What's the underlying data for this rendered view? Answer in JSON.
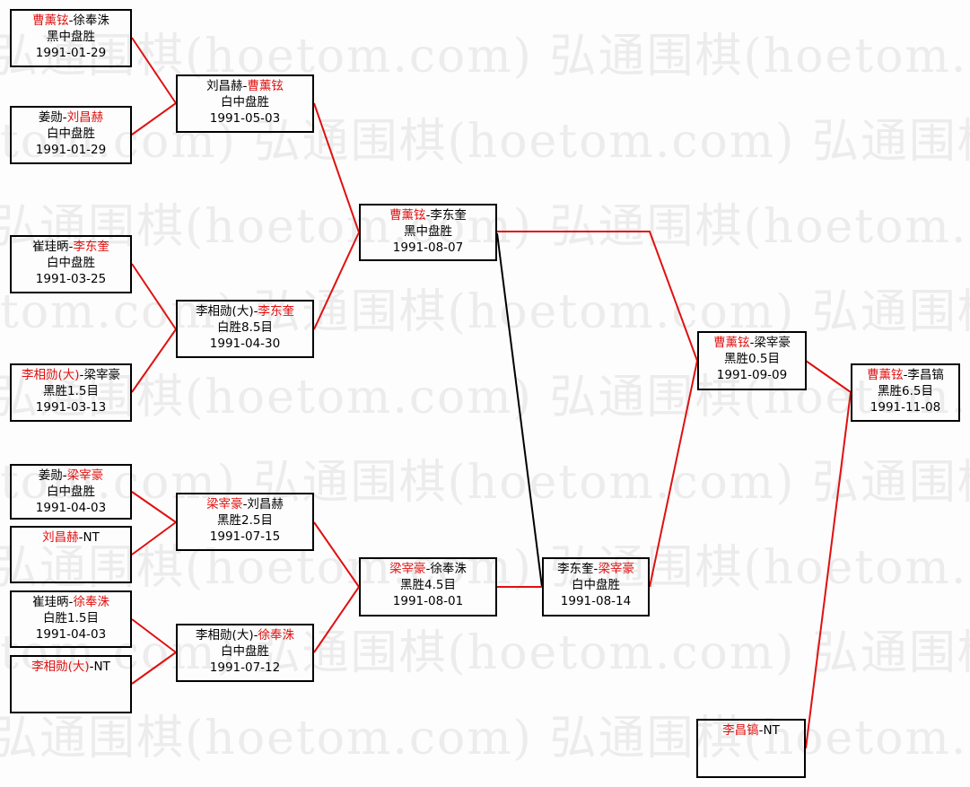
{
  "watermark": "弘通围棋(hoetom.com)",
  "colors": {
    "winner_line": "#e01010",
    "loser_line": "#000000",
    "winner_name": "#e01010"
  },
  "matches": [
    {
      "id": "r1m1",
      "line1": [
        {
          "t": "曹薰铉",
          "red": true
        },
        {
          "t": "-徐奉洙",
          "red": false
        }
      ],
      "result": "黑中盘胜",
      "date": "1991-01-29"
    },
    {
      "id": "r1m2",
      "line1": [
        {
          "t": "姜勋-",
          "red": false
        },
        {
          "t": "刘昌赫",
          "red": true
        }
      ],
      "result": "白中盘胜",
      "date": "1991-01-29"
    },
    {
      "id": "r1m3",
      "line1": [
        {
          "t": "崔珪昞-",
          "red": false
        },
        {
          "t": "李东奎",
          "red": true
        }
      ],
      "result": "白中盘胜",
      "date": "1991-03-25"
    },
    {
      "id": "r1m4",
      "line1": [
        {
          "t": "李相勋(大)",
          "red": true
        },
        {
          "t": "-梁宰豪",
          "red": false
        }
      ],
      "result": "黑胜1.5目",
      "date": "1991-03-13"
    },
    {
      "id": "r1m5",
      "line1": [
        {
          "t": "姜勋-",
          "red": false
        },
        {
          "t": "梁宰豪",
          "red": true
        }
      ],
      "result": "白中盘胜",
      "date": "1991-04-03"
    },
    {
      "id": "r1m6",
      "line1": [
        {
          "t": "刘昌赫",
          "red": true
        },
        {
          "t": "-NT",
          "red": false
        }
      ],
      "result": "",
      "date": ""
    },
    {
      "id": "r1m7",
      "line1": [
        {
          "t": "崔珪昞-",
          "red": false
        },
        {
          "t": "徐奉洙",
          "red": true
        }
      ],
      "result": "白胜1.5目",
      "date": "1991-04-03"
    },
    {
      "id": "r1m8",
      "line1": [
        {
          "t": "李相勋(大)",
          "red": true
        },
        {
          "t": "-NT",
          "red": false
        }
      ],
      "result": "",
      "date": ""
    },
    {
      "id": "r2m1",
      "line1": [
        {
          "t": "刘昌赫-",
          "red": false
        },
        {
          "t": "曹薰铉",
          "red": true
        }
      ],
      "result": "白中盘胜",
      "date": "1991-05-03"
    },
    {
      "id": "r2m2",
      "line1": [
        {
          "t": "李相勋(大)-",
          "red": false
        },
        {
          "t": "李东奎",
          "red": true
        }
      ],
      "result": "白胜8.5目",
      "date": "1991-04-30"
    },
    {
      "id": "r2m3",
      "line1": [
        {
          "t": "梁宰豪",
          "red": true
        },
        {
          "t": "-刘昌赫",
          "red": false
        }
      ],
      "result": "黑胜2.5目",
      "date": "1991-07-15"
    },
    {
      "id": "r2m4",
      "line1": [
        {
          "t": "李相勋(大)-",
          "red": false
        },
        {
          "t": "徐奉洙",
          "red": true
        }
      ],
      "result": "白中盘胜",
      "date": "1991-07-12"
    },
    {
      "id": "r3m1",
      "line1": [
        {
          "t": "曹薰铉",
          "red": true
        },
        {
          "t": "-李东奎",
          "red": false
        }
      ],
      "result": "黑中盘胜",
      "date": "1991-08-07"
    },
    {
      "id": "r3m2",
      "line1": [
        {
          "t": "梁宰豪",
          "red": true
        },
        {
          "t": "-徐奉洙",
          "red": false
        }
      ],
      "result": "黑胜4.5目",
      "date": "1991-08-01"
    },
    {
      "id": "r4m1",
      "line1": [
        {
          "t": "李东奎-",
          "red": false
        },
        {
          "t": "梁宰豪",
          "red": true
        }
      ],
      "result": "白中盘胜",
      "date": "1991-08-14"
    },
    {
      "id": "r5m1",
      "line1": [
        {
          "t": "曹薰铉",
          "red": true
        },
        {
          "t": "-梁宰豪",
          "red": false
        }
      ],
      "result": "黑胜0.5目",
      "date": "1991-09-09"
    },
    {
      "id": "r5m2",
      "line1": [
        {
          "t": "李昌镐",
          "red": true
        },
        {
          "t": "-NT",
          "red": false
        }
      ],
      "result": "",
      "date": ""
    },
    {
      "id": "final",
      "line1": [
        {
          "t": "曹薰铉",
          "red": true
        },
        {
          "t": "-李昌镐",
          "red": false
        }
      ],
      "result": "黑胜6.5目",
      "date": "1991-11-08"
    }
  ]
}
